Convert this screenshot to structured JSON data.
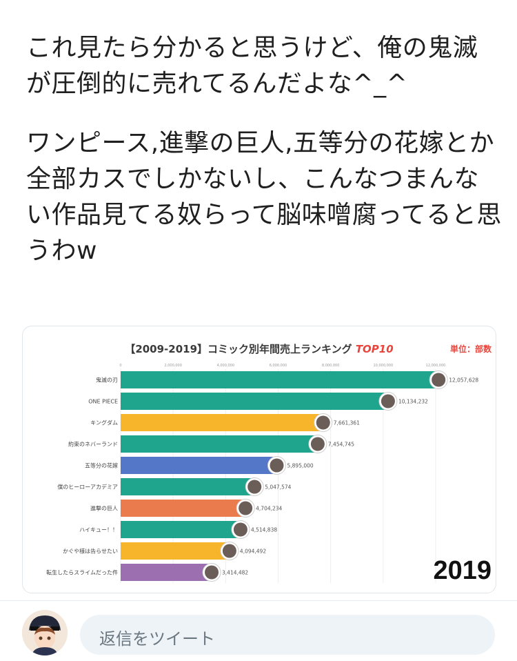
{
  "tweet": {
    "paragraph1": "これ見たら分かると思うけど、俺の鬼滅が圧倒的に売れてるんだよな^_^",
    "paragraph2": "ワンピース,進撃の巨人,五等分の花嫁とか全部カスでしかないし、こんなつまんない作品見てる奴らって脳味噌腐ってると思うわw"
  },
  "chart_data": {
    "type": "bar",
    "title": "【2009-2019】コミック別年間売上ランキング",
    "title_highlight": "TOP10",
    "unit_label": "単位：部数",
    "year_label": "2019",
    "xlim": [
      0,
      12000000
    ],
    "xticks": [
      "0",
      "2,000,000",
      "4,000,000",
      "6,000,000",
      "8,000,000",
      "10,000,000",
      "12,000,000"
    ],
    "categories": [
      "鬼滅の刃",
      "ONE PIECE",
      "キングダム",
      "約束のネバーランド",
      "五等分の花嫁",
      "僕のヒーローアカデミア",
      "進撃の巨人",
      "ハイキュー！！",
      "かぐや様は告らせたい",
      "転生したらスライムだった件"
    ],
    "values": [
      12057628,
      10134232,
      7661361,
      7454745,
      5895000,
      5047574,
      4704234,
      4514838,
      4094492,
      3414482
    ],
    "value_labels": [
      "12,057,628",
      "10,134,232",
      "7,661,361",
      "7,454,745",
      "5,895,000",
      "5,047,574",
      "4,704,234",
      "4,514,838",
      "4,094,492",
      "3,414,482"
    ],
    "colors": [
      "#1fa58e",
      "#1fa58e",
      "#f6b52a",
      "#1fa58e",
      "#5577c8",
      "#1fa58e",
      "#ea7b4d",
      "#1fa58e",
      "#f6b52a",
      "#9b6fb0"
    ]
  },
  "reply": {
    "placeholder": "返信をツイート"
  }
}
